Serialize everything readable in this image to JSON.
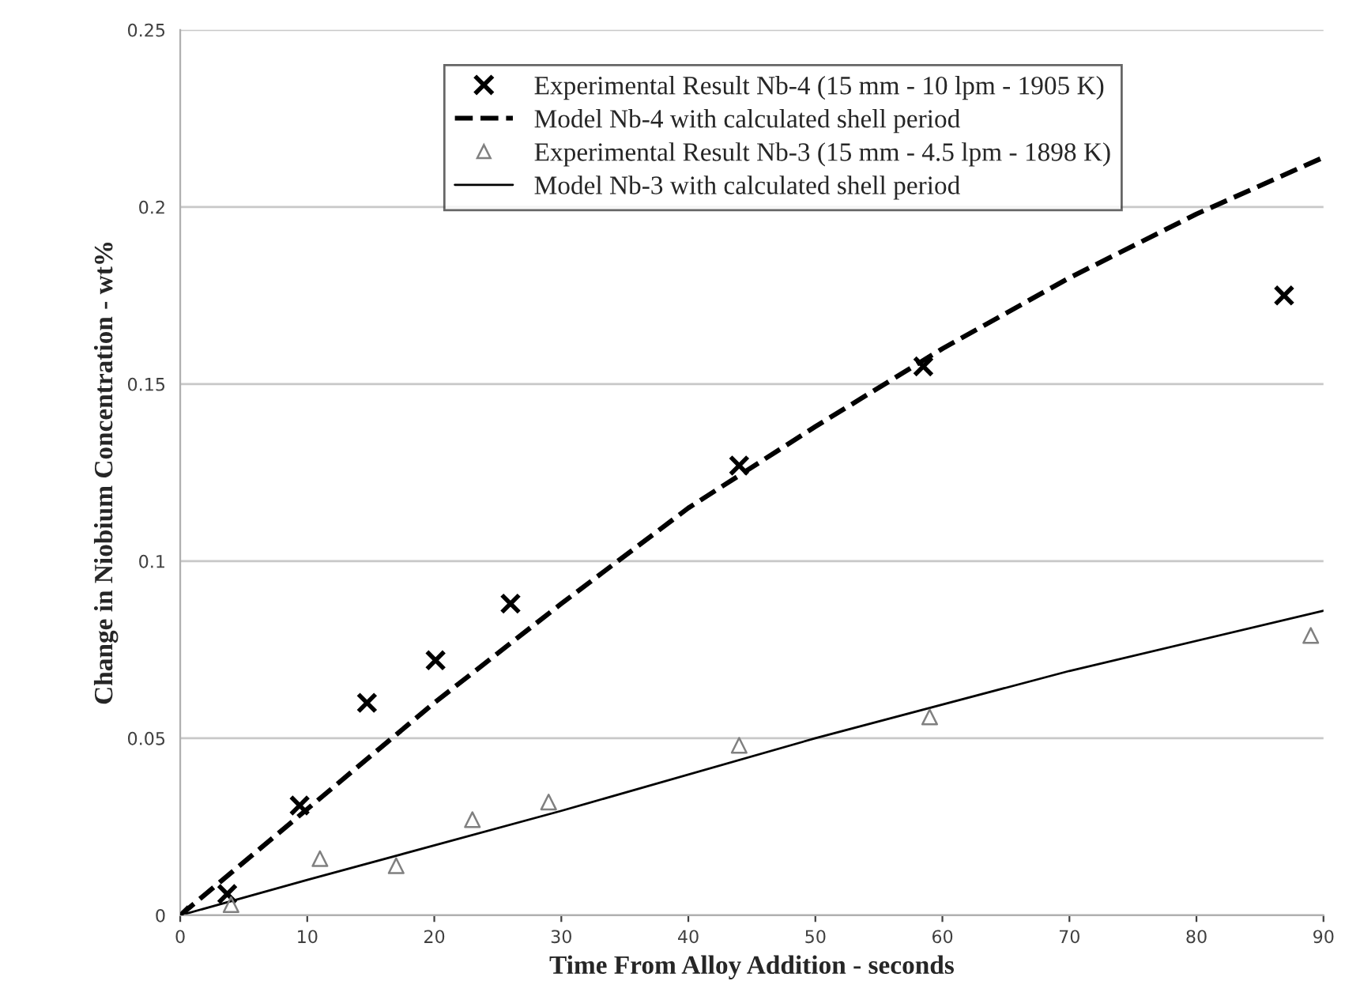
{
  "chart_data": {
    "type": "scatter",
    "xlabel": "Time From Alloy Addition - seconds",
    "ylabel": "Change in Niobium Concentration - wt%",
    "xlim": [
      0,
      90
    ],
    "xticks": [
      0,
      10,
      20,
      30,
      40,
      50,
      60,
      70,
      80,
      90
    ],
    "ylim": [
      0,
      0.25
    ],
    "yticks": [
      0,
      0.05,
      0.1,
      0.15,
      0.2,
      0.25
    ],
    "grid": "y",
    "legend": "top right",
    "series": [
      {
        "name": "Experimental Result Nb-4 (15 mm - 10 lpm - 1905 K)",
        "marker": "cross",
        "color": "#000000",
        "x": [
          0,
          3.7,
          9.4,
          14.7,
          20.1,
          26,
          44,
          58.5,
          86.9
        ],
        "values": [
          0,
          0.006,
          0.031,
          0.06,
          0.072,
          0.088,
          0.127,
          0.155,
          0.175
        ]
      },
      {
        "name": "Model Nb-4 with calculated shell period",
        "type": "line",
        "line_style": "dashed",
        "color": "#000000",
        "x": [
          0,
          10,
          20,
          30,
          40,
          50,
          60,
          70,
          80,
          90
        ],
        "values": [
          0,
          0.03,
          0.06,
          0.088,
          0.115,
          0.138,
          0.16,
          0.18,
          0.198,
          0.214
        ]
      },
      {
        "name": "Experimental Result Nb-3 (15 mm - 4.5 lpm - 1898 K)",
        "marker": "triangle",
        "color": "#808080",
        "x": [
          4,
          11,
          17,
          23,
          29,
          44,
          59,
          89
        ],
        "values": [
          0.003,
          0.016,
          0.014,
          0.027,
          0.032,
          0.048,
          0.056,
          0.079
        ]
      },
      {
        "name": "Model Nb-3 with calculated shell period",
        "type": "line",
        "line_style": "solid",
        "color": "#000000",
        "x": [
          0,
          10,
          30,
          50,
          70,
          90
        ],
        "values": [
          0,
          0.01,
          0.0295,
          0.05,
          0.069,
          0.086
        ]
      }
    ]
  }
}
